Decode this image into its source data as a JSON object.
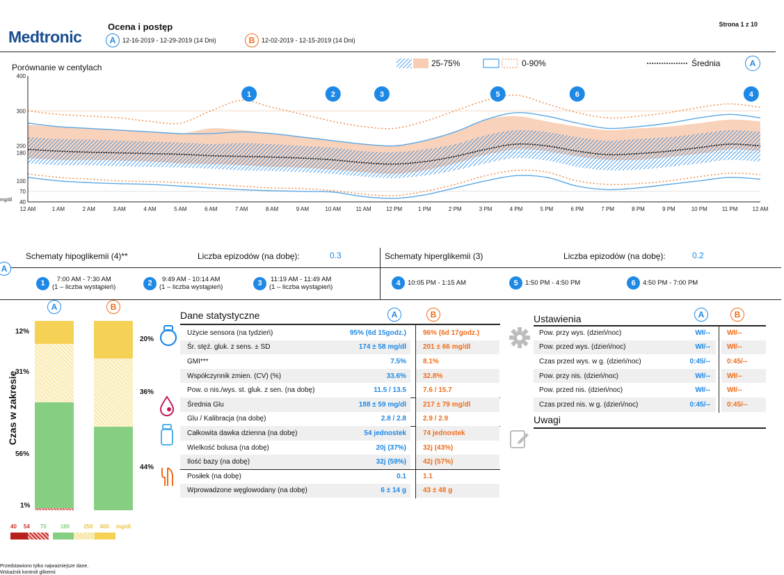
{
  "header": {
    "logo": "Medtronic",
    "title": "Ocena i postęp",
    "range_a_badge": "A",
    "range_a": "12-16-2019 - 12-29-2019 (14 Dni)",
    "range_b_badge": "B",
    "range_b": "12-02-2019 - 12-15-2019 (14 Dni)",
    "page": "Strona 1 z 10"
  },
  "chart_section": {
    "title": "Porównanie w centylach",
    "legend_iqr": "25-75%",
    "legend_range": "0-90%",
    "legend_mean": "Średnia",
    "legend_badge": "A",
    "unit": "mg/dl",
    "markers": [
      "1",
      "2",
      "3",
      "5",
      "6",
      "4"
    ]
  },
  "chart_data": {
    "type": "line",
    "title": "Porównanie w centylach",
    "ylabel": "mg/dl",
    "y_ticks": [
      400,
      300,
      200,
      180,
      100,
      70,
      40
    ],
    "ylim": [
      40,
      400
    ],
    "x_ticks": [
      "12 AM",
      "1 AM",
      "2 AM",
      "3 AM",
      "4 AM",
      "5 AM",
      "6 AM",
      "7 AM",
      "8 AM",
      "9 AM",
      "10 AM",
      "11 AM",
      "12 PM",
      "1 PM",
      "2 PM",
      "3 PM",
      "4 PM",
      "5 PM",
      "6 PM",
      "7 PM",
      "8 PM",
      "9 PM",
      "10 PM",
      "11 PM",
      "12 AM"
    ],
    "x_hours": [
      0,
      1,
      2,
      3,
      4,
      5,
      6,
      7,
      8,
      9,
      10,
      11,
      12,
      13,
      14,
      15,
      16,
      17,
      18,
      19,
      20,
      21,
      22,
      23,
      24
    ],
    "series": [
      {
        "name": "Średnia",
        "period": "A",
        "values": [
          190,
          185,
          182,
          180,
          178,
          176,
          172,
          170,
          168,
          165,
          160,
          152,
          148,
          155,
          170,
          190,
          205,
          200,
          185,
          175,
          178,
          185,
          195,
          205,
          200
        ]
      },
      {
        "period": "A",
        "band": "25-75%",
        "low": [
          150,
          145,
          145,
          142,
          140,
          138,
          135,
          130,
          128,
          125,
          120,
          112,
          108,
          115,
          130,
          150,
          165,
          158,
          140,
          130,
          132,
          140,
          150,
          160,
          155
        ],
        "high": [
          225,
          220,
          218,
          215,
          212,
          210,
          205,
          208,
          205,
          200,
          195,
          185,
          182,
          190,
          205,
          230,
          245,
          240,
          225,
          215,
          220,
          225,
          235,
          245,
          240
        ]
      },
      {
        "period": "B",
        "band": "25-75%",
        "low": [
          165,
          160,
          160,
          158,
          155,
          150,
          148,
          145,
          140,
          138,
          132,
          125,
          120,
          130,
          150,
          175,
          190,
          185,
          170,
          160,
          160,
          168,
          178,
          190,
          185
        ],
        "high": [
          260,
          255,
          250,
          245,
          240,
          235,
          250,
          245,
          235,
          225,
          215,
          205,
          200,
          215,
          240,
          275,
          285,
          270,
          255,
          245,
          250,
          255,
          265,
          275,
          270
        ]
      },
      {
        "period": "A",
        "band": "0-90%",
        "low": [
          110,
          100,
          95,
          92,
          90,
          85,
          80,
          75,
          72,
          70,
          68,
          55,
          50,
          60,
          80,
          100,
          115,
          110,
          85,
          75,
          80,
          90,
          100,
          110,
          105
        ],
        "high": [
          265,
          255,
          250,
          245,
          240,
          235,
          235,
          240,
          235,
          225,
          215,
          205,
          200,
          215,
          240,
          275,
          295,
          285,
          265,
          250,
          255,
          265,
          280,
          290,
          280
        ]
      },
      {
        "period": "B",
        "band": "0-90%",
        "low": [
          120,
          110,
          105,
          100,
          98,
          95,
          90,
          85,
          80,
          78,
          72,
          62,
          58,
          70,
          90,
          115,
          130,
          125,
          100,
          90,
          92,
          100,
          112,
          122,
          118
        ],
        "high": [
          300,
          290,
          285,
          280,
          270,
          265,
          300,
          330,
          310,
          290,
          270,
          255,
          250,
          270,
          300,
          330,
          345,
          320,
          295,
          280,
          285,
          295,
          310,
          320,
          310
        ]
      }
    ]
  },
  "patterns": {
    "badge": "A",
    "hypo_title": "Schematy hipoglikemii (4)**",
    "hypo_count_label": "Liczba epizodów (na dobę):",
    "hypo_count": "0.3",
    "hyper_title": "Schematy hiperglikemii (3)",
    "hyper_count_label": "Liczba epizodów (na dobę):",
    "hyper_count": "0.2",
    "hypo_items": [
      {
        "num": "1",
        "time": "7:00 AM - 7:30 AM",
        "note": "(1 – liczba wystąpień)"
      },
      {
        "num": "2",
        "time": "9:49 AM - 10:14 AM",
        "note": "(1 – liczba wystąpień)"
      },
      {
        "num": "3",
        "time": "11:19 AM - 11:49 AM",
        "note": "(1 – liczba wystąpień)"
      }
    ],
    "hyper_items": [
      {
        "num": "4",
        "time": "10:05 PM - 1:15 AM"
      },
      {
        "num": "5",
        "time": "1:50 PM - 4:50 PM"
      },
      {
        "num": "6",
        "time": "4:50 PM - 7:00 PM"
      }
    ]
  },
  "tir": {
    "axis_label": "Czas w zakresie",
    "badge_a": "A",
    "badge_b": "B",
    "a_labels": [
      "12%",
      "31%",
      "56%",
      "1%"
    ],
    "b_labels": [
      "20%",
      "36%",
      "44%"
    ],
    "a_fractions": [
      0.12,
      0.31,
      0.56,
      0.01
    ],
    "b_fractions": [
      0.2,
      0.36,
      0.44,
      0.0
    ],
    "scale": [
      "40",
      "54",
      "70",
      "180",
      "250",
      "400",
      "mg/dl"
    ],
    "colors": {
      "very_high": "#f5d255",
      "high": "#f9eab0",
      "in_range": "#86cf82",
      "low": "#c9302c",
      "very_low": "#9e1b1b"
    }
  },
  "stats": {
    "title": "Dane statystyczne",
    "badge_a": "A",
    "badge_b": "B",
    "rows": [
      {
        "label": "Użycie sensora (na tydzień)",
        "a": "95% (6d 15godz.)",
        "b": "96% (6d 17godz.)"
      },
      {
        "label": "Śr. stęż. gluk. z sens. ± SD",
        "a": "174 ± 58 mg/dl",
        "b": "201 ± 66 mg/dl"
      },
      {
        "label": "GMI***",
        "a": "7.5%",
        "b": "8.1%"
      },
      {
        "label": "Współczynnik zmien. (CV) (%)",
        "a": "33.6%",
        "b": "32.8%"
      },
      {
        "label": "Pow. o nis./wys. st. gluk. z sen. (na dobę)",
        "a": "11.5 / 13.5",
        "b": "7.6 / 15.7"
      },
      {
        "label": "Średnia Glu",
        "a": "188 ± 59 mg/dl",
        "b": "217 ± 79 mg/dl"
      },
      {
        "label": "Glu / Kalibracja (na dobę)",
        "a": "2.8 / 2.8",
        "b": "2.9 / 2.9"
      },
      {
        "label": "Całkowita dawka dzienna (na dobę)",
        "a": "54 jednostek",
        "b": "74 jednostek"
      },
      {
        "label": "Wielkość bolusa (na dobę)",
        "a": "20j (37%)",
        "b": "32j (43%)"
      },
      {
        "label": "Ilość bazy (na dobę)",
        "a": "32j (59%)",
        "b": "42j (57%)"
      },
      {
        "label": "Posiłek (na dobę)",
        "a": "0.1",
        "b": "1.1"
      },
      {
        "label": "Wprowadzone węglowodany (na dobę)",
        "a": "6 ± 14 g",
        "b": "43 ± 48 g"
      }
    ]
  },
  "settings": {
    "title": "Ustawienia",
    "badge_a": "A",
    "badge_b": "B",
    "rows": [
      {
        "label": "Pow. przy wys. (dzień/noc)",
        "a": "Wł/--",
        "b": "Wł/--"
      },
      {
        "label": "Pow. przed wys. (dzień/noc)",
        "a": "Wł/--",
        "b": "Wł/--"
      },
      {
        "label": "Czas przed wys. w g. (dzień/noc)",
        "a": "0:45/--",
        "b": "0:45/--"
      },
      {
        "label": "Pow. przy nis. (dzień/noc)",
        "a": "Wł/--",
        "b": "Wł/--"
      },
      {
        "label": "Pow. przed nis. (dzień/noc)",
        "a": "Wł/--",
        "b": "Wł/--"
      },
      {
        "label": "Czas przed nis. w g. (dzień/noc)",
        "a": "0:45/--",
        "b": "0:45/--"
      }
    ],
    "notes_title": "Uwagi"
  },
  "footer": {
    "line1": "Przedstawiono tylko najważniejsze dane.",
    "line2": "Wskaźnik kontroli glikemii"
  },
  "icons": {
    "sensor": "sensor-icon",
    "blood": "blood-drop-icon",
    "insulin": "insulin-vial-icon",
    "meal": "meal-icon",
    "settings": "gear-icon",
    "notes": "edit-note-icon"
  }
}
